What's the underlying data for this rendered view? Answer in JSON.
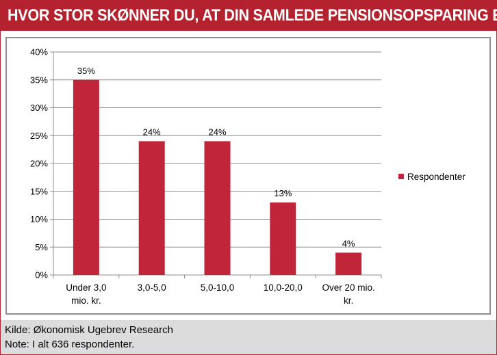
{
  "header": {
    "title": "HVOR STOR SKØNNER DU, AT DIN SAMLEDE PENSIONSOPSPARING ER?"
  },
  "colors": {
    "brand": "#b3222e",
    "bar": "#c0253a",
    "footer_bg": "#dcdcdc"
  },
  "chart_data": {
    "type": "bar",
    "categories": [
      [
        "Under 3,0",
        "mio. kr."
      ],
      [
        "3,0-5,0"
      ],
      [
        "5,0-10,0"
      ],
      [
        "10,0-20,0"
      ],
      [
        "Over 20 mio.",
        "kr."
      ]
    ],
    "values": [
      35,
      24,
      24,
      13,
      4
    ],
    "data_labels": [
      "35%",
      "24%",
      "24%",
      "13%",
      "4%"
    ],
    "series_name": "Respondenter",
    "ylim": [
      0,
      40
    ],
    "yticks": [
      0,
      5,
      10,
      15,
      20,
      25,
      30,
      35,
      40
    ],
    "ytick_labels": [
      "0%",
      "5%",
      "10%",
      "15%",
      "20%",
      "25%",
      "30%",
      "35%",
      "40%"
    ],
    "grid": true,
    "legend_position": "right"
  },
  "footer": {
    "source": "Kilde: Økonomisk Ugebrev Research",
    "note": "Note: I alt 636 respondenter."
  }
}
